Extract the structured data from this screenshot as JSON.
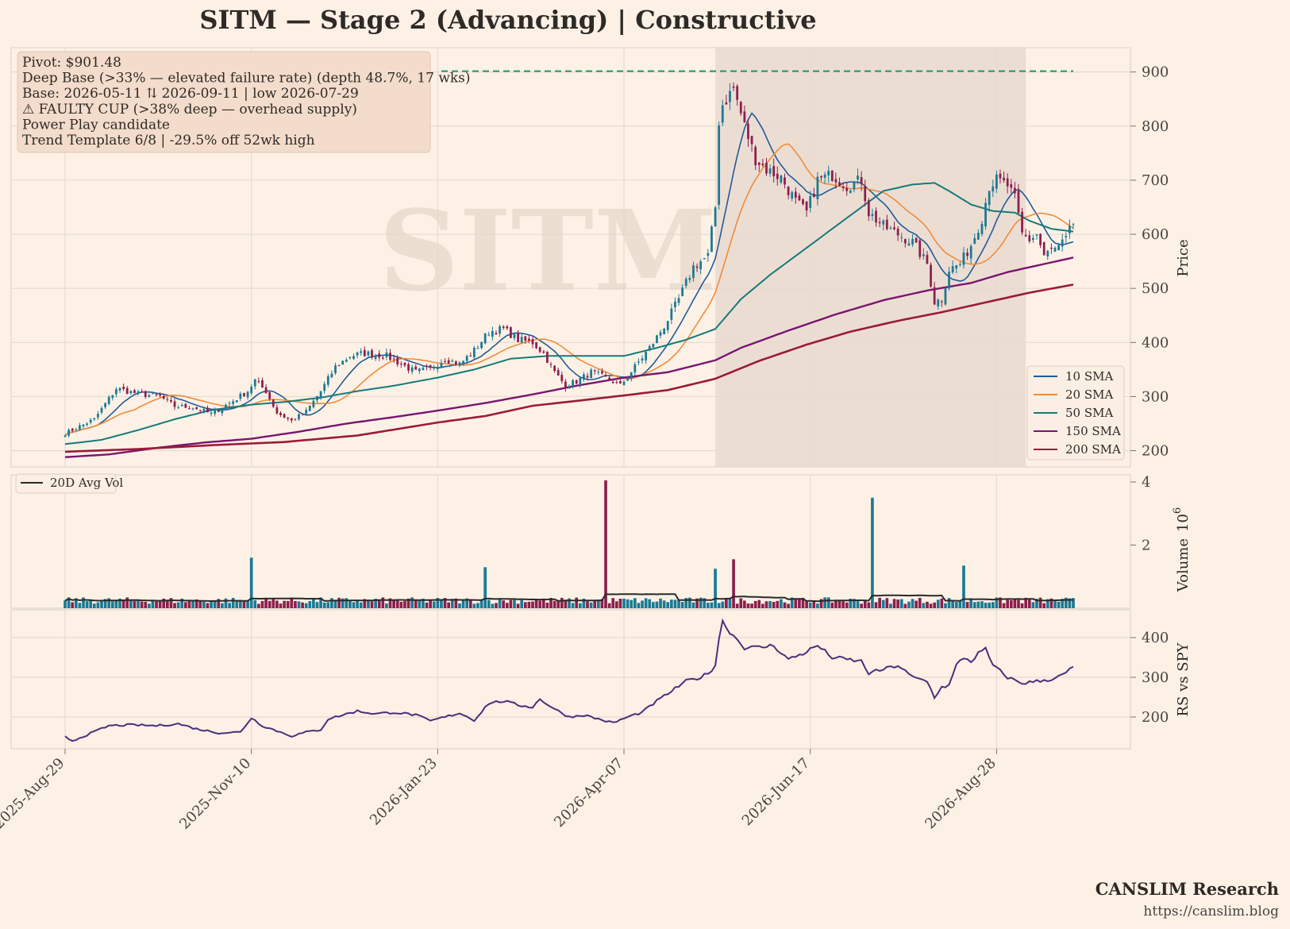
{
  "title": "SITM  —  Stage 2 (Advancing)  |  Constructive",
  "info_box": {
    "lines": [
      "Pivot: $901.48",
      "Deep Base (>33% — elevated failure rate)  (depth 48.7%, 17 wks)",
      "Base: 2026-05-11 ⇅ 2026-09-11  |  low 2026-07-29",
      "⚠ FAULTY CUP (>38% deep — overhead supply)",
      "Power Play candidate",
      "Trend Template 6/8  |  -29.5% off 52wk high"
    ]
  },
  "watermark": "SITM",
  "credits": {
    "name": "CANSLIM Research",
    "url": "https://canslim.blog"
  },
  "colors": {
    "background": "#fdf1e6",
    "up": "#1a7a94",
    "down": "#8c1f4d",
    "sma10": "#1f5c99",
    "sma20": "#f08c3a",
    "sma50": "#167a7a",
    "sma150": "#7a1570",
    "sma200": "#9c1a3a",
    "pivot": "#1a9a5a",
    "rs": "#4a2f7a",
    "avgvol": "#2a2a2a",
    "base_shade": "#e9d9cf"
  },
  "chart_data": [
    {
      "type": "candlestick",
      "panel": "price",
      "ylabel": "Price",
      "yticks": [
        200,
        300,
        400,
        500,
        600,
        700,
        800,
        900
      ],
      "ylim": [
        170,
        945
      ],
      "x_tick_labels": [
        "2025-Aug-29",
        "2025-Nov-10",
        "2026-Jan-23",
        "2026-Apr-07",
        "2026-Jun-17",
        "2026-Aug-28"
      ],
      "x_tick_sessions": [
        0,
        51,
        102,
        153,
        204,
        255
      ],
      "pivot": 901.48,
      "base_shade_sessions": [
        178,
        263
      ],
      "price_anchors": [
        [
          0,
          232
        ],
        [
          8,
          258
        ],
        [
          14,
          315
        ],
        [
          20,
          305
        ],
        [
          26,
          300
        ],
        [
          30,
          282
        ],
        [
          35,
          280
        ],
        [
          40,
          268
        ],
        [
          46,
          292
        ],
        [
          50,
          310
        ],
        [
          52,
          330
        ],
        [
          55,
          310
        ],
        [
          58,
          270
        ],
        [
          62,
          255
        ],
        [
          66,
          272
        ],
        [
          70,
          310
        ],
        [
          74,
          355
        ],
        [
          78,
          375
        ],
        [
          82,
          380
        ],
        [
          88,
          375
        ],
        [
          92,
          360
        ],
        [
          96,
          345
        ],
        [
          100,
          352
        ],
        [
          104,
          370
        ],
        [
          108,
          360
        ],
        [
          112,
          385
        ],
        [
          116,
          420
        ],
        [
          120,
          425
        ],
        [
          124,
          405
        ],
        [
          128,
          400
        ],
        [
          131,
          380
        ],
        [
          134,
          345
        ],
        [
          137,
          320
        ],
        [
          140,
          328
        ],
        [
          144,
          345
        ],
        [
          148,
          335
        ],
        [
          152,
          320
        ],
        [
          156,
          355
        ],
        [
          160,
          390
        ],
        [
          164,
          430
        ],
        [
          168,
          480
        ],
        [
          172,
          540
        ],
        [
          176,
          560
        ],
        [
          178,
          650
        ],
        [
          179,
          810
        ],
        [
          180,
          840
        ],
        [
          183,
          870
        ],
        [
          186,
          800
        ],
        [
          189,
          740
        ],
        [
          192,
          720
        ],
        [
          196,
          705
        ],
        [
          200,
          660
        ],
        [
          203,
          640
        ],
        [
          206,
          700
        ],
        [
          210,
          710
        ],
        [
          214,
          690
        ],
        [
          218,
          700
        ],
        [
          220,
          640
        ],
        [
          224,
          615
        ],
        [
          228,
          600
        ],
        [
          232,
          585
        ],
        [
          236,
          545
        ],
        [
          238,
          475
        ],
        [
          240,
          480
        ],
        [
          242,
          535
        ],
        [
          245,
          545
        ],
        [
          248,
          580
        ],
        [
          251,
          630
        ],
        [
          253,
          690
        ],
        [
          255,
          700
        ],
        [
          258,
          690
        ],
        [
          260,
          665
        ],
        [
          262,
          600
        ],
        [
          264,
          590
        ],
        [
          266,
          600
        ],
        [
          268,
          560
        ],
        [
          270,
          570
        ],
        [
          272,
          575
        ],
        [
          274,
          590
        ],
        [
          276,
          620
        ]
      ],
      "last_session": 276,
      "series": [
        {
          "name": "10 SMA",
          "period": 10
        },
        {
          "name": "20 SMA",
          "period": 20
        },
        {
          "name": "50 SMA",
          "period": 50
        },
        {
          "name": "150 SMA",
          "period": 150
        },
        {
          "name": "200 SMA",
          "period": 200
        }
      ],
      "ma_anchors": {
        "150 SMA": [
          [
            0,
            188
          ],
          [
            12,
            193
          ],
          [
            25,
            205
          ],
          [
            38,
            215
          ],
          [
            51,
            222
          ],
          [
            64,
            235
          ],
          [
            77,
            250
          ],
          [
            90,
            262
          ],
          [
            102,
            274
          ],
          [
            115,
            288
          ],
          [
            128,
            304
          ],
          [
            140,
            320
          ],
          [
            153,
            335
          ],
          [
            165,
            345
          ],
          [
            178,
            367
          ],
          [
            185,
            390
          ],
          [
            198,
            422
          ],
          [
            211,
            452
          ],
          [
            224,
            478
          ],
          [
            236,
            496
          ],
          [
            248,
            510
          ],
          [
            258,
            530
          ],
          [
            268,
            545
          ],
          [
            276,
            557
          ]
        ],
        "200 SMA": [
          [
            0,
            198
          ],
          [
            20,
            203
          ],
          [
            40,
            210
          ],
          [
            60,
            216
          ],
          [
            80,
            228
          ],
          [
            102,
            252
          ],
          [
            115,
            264
          ],
          [
            128,
            283
          ],
          [
            140,
            292
          ],
          [
            153,
            302
          ],
          [
            165,
            312
          ],
          [
            178,
            333
          ],
          [
            190,
            366
          ],
          [
            203,
            396
          ],
          [
            215,
            420
          ],
          [
            228,
            440
          ],
          [
            240,
            456
          ],
          [
            252,
            474
          ],
          [
            264,
            492
          ],
          [
            276,
            507
          ]
        ],
        "50 SMA": [
          [
            0,
            212
          ],
          [
            10,
            220
          ],
          [
            20,
            238
          ],
          [
            30,
            258
          ],
          [
            40,
            275
          ],
          [
            51,
            285
          ],
          [
            60,
            290
          ],
          [
            70,
            298
          ],
          [
            80,
            310
          ],
          [
            90,
            320
          ],
          [
            102,
            335
          ],
          [
            112,
            350
          ],
          [
            122,
            370
          ],
          [
            132,
            375
          ],
          [
            142,
            375
          ],
          [
            153,
            375
          ],
          [
            162,
            390
          ],
          [
            170,
            405
          ],
          [
            178,
            425
          ],
          [
            185,
            480
          ],
          [
            193,
            525
          ],
          [
            200,
            560
          ],
          [
            208,
            600
          ],
          [
            216,
            640
          ],
          [
            224,
            680
          ],
          [
            232,
            692
          ],
          [
            238,
            695
          ],
          [
            242,
            680
          ],
          [
            248,
            655
          ],
          [
            254,
            643
          ],
          [
            260,
            640
          ],
          [
            264,
            625
          ],
          [
            270,
            610
          ],
          [
            276,
            605
          ]
        ]
      },
      "legend": {
        "entries": [
          "10 SMA",
          "20 SMA",
          "50 SMA",
          "150 SMA",
          "200 SMA"
        ],
        "loc": "lower right"
      }
    },
    {
      "type": "bar",
      "panel": "volume",
      "ylabel": "Volume",
      "ylim_millions": [
        0,
        4.05
      ],
      "yticks": [
        2,
        4
      ],
      "scale_label": "10",
      "scale_exponent": "6",
      "avg_series_name": "20D Avg Vol",
      "base_volume_millions": 0.23,
      "spike_sessions": [
        [
          51,
          1.6
        ],
        [
          115,
          1.3
        ],
        [
          148,
          4.05
        ],
        [
          178,
          1.25
        ],
        [
          183,
          1.55
        ],
        [
          221,
          3.5
        ],
        [
          246,
          1.35
        ]
      ]
    },
    {
      "type": "line",
      "panel": "relative_strength",
      "ylabel": "RS vs SPY",
      "yticks": [
        200,
        300,
        400
      ],
      "ylim": [
        120,
        470
      ],
      "rs_anchors": [
        [
          0,
          150
        ],
        [
          2,
          140
        ],
        [
          6,
          155
        ],
        [
          12,
          178
        ],
        [
          18,
          180
        ],
        [
          25,
          178
        ],
        [
          31,
          183
        ],
        [
          36,
          170
        ],
        [
          42,
          160
        ],
        [
          48,
          162
        ],
        [
          51,
          198
        ],
        [
          54,
          178
        ],
        [
          58,
          165
        ],
        [
          62,
          152
        ],
        [
          66,
          162
        ],
        [
          70,
          168
        ],
        [
          72,
          195
        ],
        [
          76,
          205
        ],
        [
          80,
          215
        ],
        [
          85,
          208
        ],
        [
          90,
          212
        ],
        [
          96,
          205
        ],
        [
          100,
          190
        ],
        [
          104,
          200
        ],
        [
          108,
          210
        ],
        [
          112,
          192
        ],
        [
          116,
          235
        ],
        [
          120,
          240
        ],
        [
          124,
          230
        ],
        [
          128,
          225
        ],
        [
          130,
          245
        ],
        [
          134,
          220
        ],
        [
          138,
          200
        ],
        [
          142,
          205
        ],
        [
          146,
          195
        ],
        [
          150,
          185
        ],
        [
          154,
          200
        ],
        [
          158,
          212
        ],
        [
          162,
          240
        ],
        [
          166,
          265
        ],
        [
          170,
          290
        ],
        [
          174,
          300
        ],
        [
          176,
          310
        ],
        [
          178,
          330
        ],
        [
          179,
          400
        ],
        [
          180,
          440
        ],
        [
          182,
          415
        ],
        [
          186,
          375
        ],
        [
          190,
          375
        ],
        [
          194,
          380
        ],
        [
          198,
          345
        ],
        [
          202,
          360
        ],
        [
          206,
          380
        ],
        [
          210,
          350
        ],
        [
          214,
          345
        ],
        [
          218,
          340
        ],
        [
          220,
          310
        ],
        [
          224,
          320
        ],
        [
          228,
          330
        ],
        [
          232,
          300
        ],
        [
          236,
          290
        ],
        [
          238,
          250
        ],
        [
          240,
          275
        ],
        [
          242,
          280
        ],
        [
          244,
          330
        ],
        [
          246,
          350
        ],
        [
          248,
          340
        ],
        [
          250,
          360
        ],
        [
          252,
          370
        ],
        [
          254,
          330
        ],
        [
          258,
          300
        ],
        [
          262,
          285
        ],
        [
          266,
          290
        ],
        [
          270,
          295
        ],
        [
          273,
          305
        ],
        [
          276,
          325
        ]
      ]
    }
  ]
}
